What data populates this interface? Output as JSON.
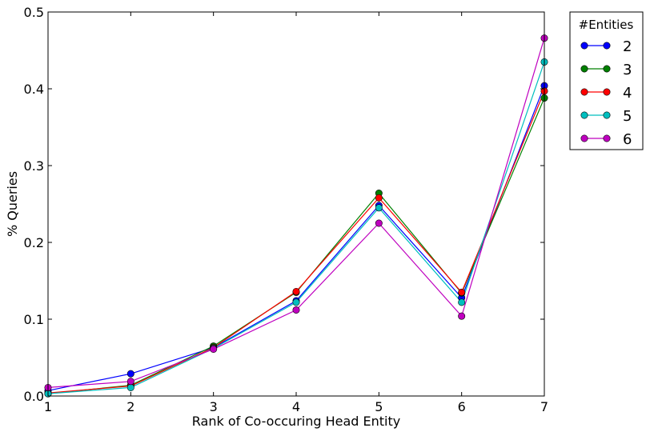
{
  "chart_data": {
    "type": "line",
    "title": "",
    "xlabel": "Rank of Co-occuring Head Entity",
    "ylabel": "% Queries",
    "x": [
      1,
      2,
      3,
      4,
      5,
      6,
      7
    ],
    "xlim": [
      1,
      7
    ],
    "ylim": [
      0,
      0.5
    ],
    "xticks": [
      "1",
      "2",
      "3",
      "4",
      "5",
      "6",
      "7"
    ],
    "yticks": [
      "0.0",
      "0.1",
      "0.2",
      "0.3",
      "0.4",
      "0.5"
    ],
    "grid": false,
    "legend": {
      "title": "#Entities",
      "placement": "outside-top-right"
    },
    "series": [
      {
        "name": "2",
        "color": "#0000ff",
        "values": [
          0.007,
          0.029,
          0.063,
          0.124,
          0.248,
          0.128,
          0.404
        ]
      },
      {
        "name": "3",
        "color": "#008000",
        "values": [
          0.003,
          0.014,
          0.065,
          0.135,
          0.264,
          0.134,
          0.388
        ]
      },
      {
        "name": "4",
        "color": "#ff0000",
        "values": [
          0.004,
          0.013,
          0.063,
          0.136,
          0.258,
          0.135,
          0.397
        ]
      },
      {
        "name": "5",
        "color": "#00bfbf",
        "values": [
          0.003,
          0.011,
          0.062,
          0.122,
          0.245,
          0.122,
          0.435
        ]
      },
      {
        "name": "6",
        "color": "#bf00bf",
        "values": [
          0.011,
          0.019,
          0.061,
          0.112,
          0.225,
          0.104,
          0.466
        ]
      }
    ]
  }
}
